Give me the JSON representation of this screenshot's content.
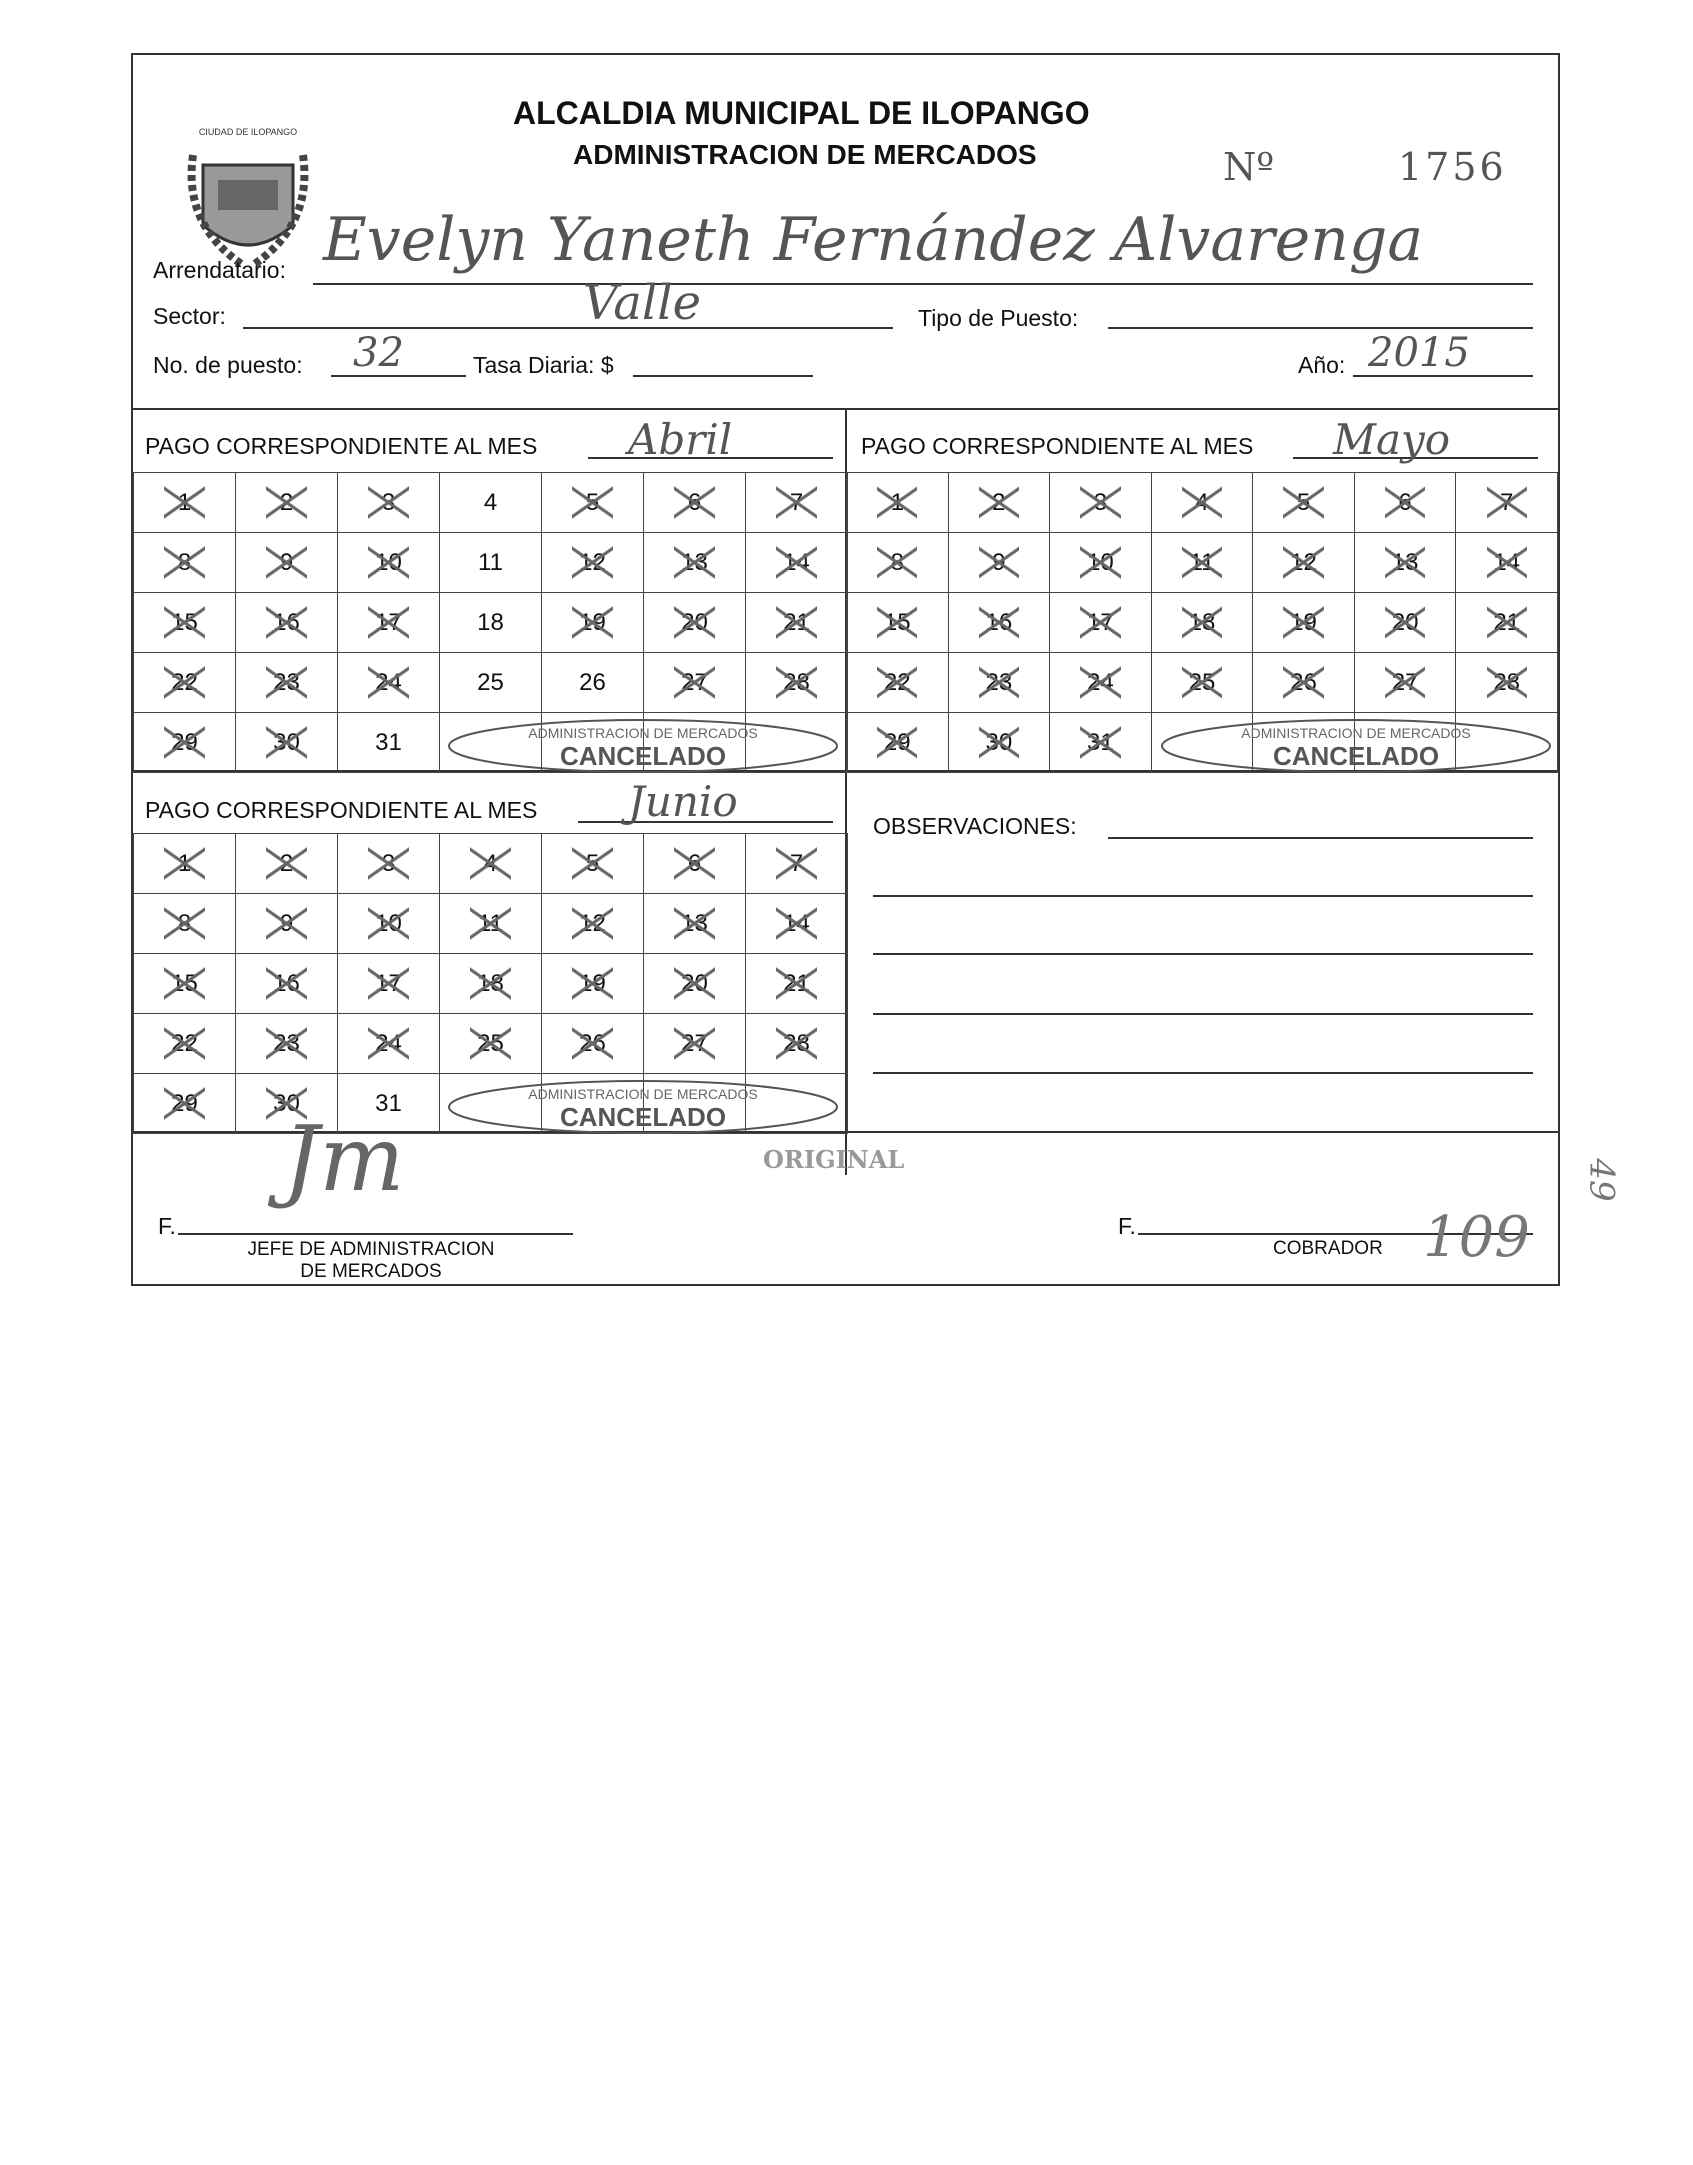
{
  "header": {
    "title": "ALCALDIA MUNICIPAL DE ILOPANGO",
    "subtitle": "ADMINISTRACION DE MERCADOS",
    "number_label": "Nº",
    "number": "1756",
    "seal_text": "CIUDAD DE ILOPANGO"
  },
  "fields": {
    "arrendatario_label": "Arrendatario:",
    "arrendatario": "Evelyn Yaneth Fernández Alvarenga",
    "sector_label": "Sector:",
    "sector": "Valle",
    "tipo_label": "Tipo de Puesto:",
    "tipo": "",
    "puesto_label": "No. de puesto:",
    "puesto": "32",
    "tasa_label": "Tasa Diaria: $",
    "tasa": "",
    "anio_label": "Año:",
    "anio": "2015"
  },
  "months": [
    {
      "label": "PAGO CORRESPONDIENTE AL MES",
      "month": "Abril",
      "crossed": [
        1,
        2,
        3,
        5,
        6,
        7,
        8,
        9,
        10,
        12,
        13,
        14,
        15,
        16,
        17,
        19,
        20,
        21,
        22,
        23,
        24,
        27,
        28,
        29,
        30
      ]
    },
    {
      "label": "PAGO CORRESPONDIENTE AL MES",
      "month": "Mayo",
      "crossed": [
        1,
        2,
        3,
        4,
        5,
        6,
        7,
        8,
        9,
        10,
        11,
        12,
        13,
        14,
        15,
        16,
        17,
        18,
        19,
        20,
        21,
        22,
        23,
        24,
        25,
        26,
        27,
        28,
        29,
        30,
        31
      ]
    },
    {
      "label": "PAGO CORRESPONDIENTE AL MES",
      "month": "Junio",
      "crossed": [
        1,
        2,
        3,
        4,
        5,
        6,
        7,
        8,
        9,
        10,
        11,
        12,
        13,
        14,
        15,
        16,
        17,
        18,
        19,
        20,
        21,
        22,
        23,
        24,
        25,
        26,
        27,
        28,
        29,
        30
      ]
    }
  ],
  "stamp": {
    "ring": "ALCALDIA MUNICIPAL DE ILOPANGO",
    "inner": "ADMINISTRACION DE MERCADOS",
    "center": "CANCELADO"
  },
  "observaciones_label": "OBSERVACIONES:",
  "footer": {
    "original": "ORIGINAL",
    "f1": "F.",
    "jefe": "JEFE DE ADMINISTRACION",
    "jefe2": "DE MERCADOS",
    "f2": "F.",
    "cobrador": "COBRADOR",
    "signature": "Jm",
    "handnote": "109",
    "margin_note": "49"
  }
}
